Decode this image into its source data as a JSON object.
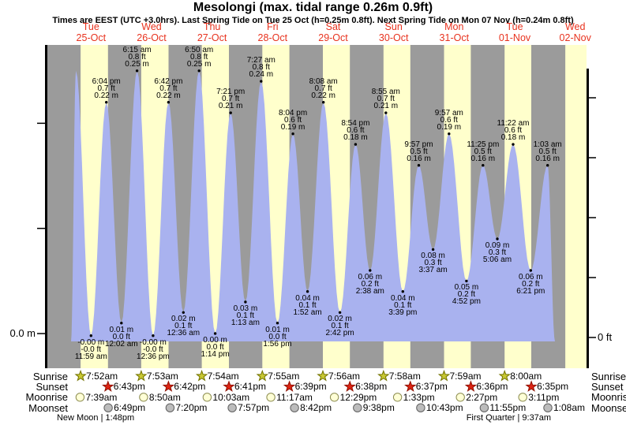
{
  "header": {
    "title": "Mesolongi (max. tidal range 0.26m 0.9ft)",
    "subtitle": "Times are EEST (UTC +3.0hrs). Last Spring Tide on Tue 25 Oct (h=0.25m 0.8ft). Next Spring Tide on Mon 07 Nov (h=0.24m 0.8ft)"
  },
  "chart_data": {
    "type": "area",
    "title": "Mesolongi (max. tidal range 0.26m 0.9ft)",
    "y_axis": {
      "left_label": "0.0 m",
      "right_label": "0 ft",
      "left_tick_values_m": [
        0,
        0.1,
        0.2
      ],
      "right_tick_values_ft": [
        0,
        0.2,
        0.4,
        0.6,
        0.8
      ],
      "range_m": [
        -0.008,
        0.274
      ]
    },
    "days": [
      {
        "name": "Tue",
        "date": "25-Oct"
      },
      {
        "name": "Wed",
        "date": "26-Oct"
      },
      {
        "name": "Thu",
        "date": "27-Oct"
      },
      {
        "name": "Fri",
        "date": "28-Oct"
      },
      {
        "name": "Sat",
        "date": "29-Oct"
      },
      {
        "name": "Sun",
        "date": "30-Oct"
      },
      {
        "name": "Mon",
        "date": "31-Oct"
      },
      {
        "name": "Tue",
        "date": "01-Nov"
      },
      {
        "name": "Wed",
        "date": "02-Nov"
      }
    ],
    "tide_events": [
      {
        "kind": "high",
        "day": 0,
        "hour": 6.0,
        "time": "",
        "ft": "",
        "m": "",
        "value": 0.25,
        "labeled": false
      },
      {
        "kind": "low",
        "day": 0,
        "hour": 11.983,
        "time": "11:59 am",
        "ft": "-0.0 ft",
        "m": "-0.00 m",
        "value": -0.002,
        "labeled": true
      },
      {
        "kind": "high",
        "day": 0,
        "hour": 18.067,
        "time": "6:04 pm",
        "ft": "0.7 ft",
        "m": "0.22 m",
        "value": 0.22,
        "labeled": true
      },
      {
        "kind": "low",
        "day": 1,
        "hour": 0.033,
        "time": "12:02 am",
        "ft": "0.0 ft",
        "m": "0.01 m",
        "value": 0.01,
        "labeled": true
      },
      {
        "kind": "high",
        "day": 1,
        "hour": 6.25,
        "time": "6:15 am",
        "ft": "0.8 ft",
        "m": "0.25 m",
        "value": 0.25,
        "labeled": true
      },
      {
        "kind": "low",
        "day": 1,
        "hour": 12.6,
        "time": "12:36 pm",
        "ft": "-0.0 ft",
        "m": "-0.00 m",
        "value": -0.002,
        "labeled": true
      },
      {
        "kind": "high",
        "day": 1,
        "hour": 18.7,
        "time": "6:42 pm",
        "ft": "0.7 ft",
        "m": "0.22 m",
        "value": 0.22,
        "labeled": true
      },
      {
        "kind": "low",
        "day": 2,
        "hour": 0.6,
        "time": "12:36 am",
        "ft": "0.1 ft",
        "m": "0.02 m",
        "value": 0.02,
        "labeled": true
      },
      {
        "kind": "high",
        "day": 2,
        "hour": 6.833,
        "time": "6:50 am",
        "ft": "0.8 ft",
        "m": "0.25 m",
        "value": 0.25,
        "labeled": true
      },
      {
        "kind": "low",
        "day": 2,
        "hour": 13.233,
        "time": "1:14 pm",
        "ft": "0.0 ft",
        "m": "0.00 m",
        "value": 0.0,
        "labeled": true
      },
      {
        "kind": "high",
        "day": 2,
        "hour": 19.35,
        "time": "7:21 pm",
        "ft": "0.7 ft",
        "m": "0.21 m",
        "value": 0.21,
        "labeled": true
      },
      {
        "kind": "low",
        "day": 3,
        "hour": 1.217,
        "time": "1:13 am",
        "ft": "0.1 ft",
        "m": "0.03 m",
        "value": 0.03,
        "labeled": true
      },
      {
        "kind": "high",
        "day": 3,
        "hour": 7.45,
        "time": "7:27 am",
        "ft": "0.8 ft",
        "m": "0.24 m",
        "value": 0.24,
        "labeled": true
      },
      {
        "kind": "low",
        "day": 3,
        "hour": 13.933,
        "time": "1:56 pm",
        "ft": "0.0 ft",
        "m": "0.01 m",
        "value": 0.01,
        "labeled": true
      },
      {
        "kind": "high",
        "day": 3,
        "hour": 20.067,
        "time": "8:04 pm",
        "ft": "0.6 ft",
        "m": "0.19 m",
        "value": 0.19,
        "labeled": true
      },
      {
        "kind": "low",
        "day": 4,
        "hour": 1.867,
        "time": "1:52 am",
        "ft": "0.1 ft",
        "m": "0.04 m",
        "value": 0.04,
        "labeled": true
      },
      {
        "kind": "high",
        "day": 4,
        "hour": 8.133,
        "time": "8:08 am",
        "ft": "0.7 ft",
        "m": "0.22 m",
        "value": 0.22,
        "labeled": true
      },
      {
        "kind": "low",
        "day": 4,
        "hour": 14.7,
        "time": "2:42 pm",
        "ft": "0.1 ft",
        "m": "0.02 m",
        "value": 0.02,
        "labeled": true
      },
      {
        "kind": "high",
        "day": 4,
        "hour": 20.9,
        "time": "8:54 pm",
        "ft": "0.6 ft",
        "m": "0.18 m",
        "value": 0.18,
        "labeled": true
      },
      {
        "kind": "low",
        "day": 5,
        "hour": 2.633,
        "time": "2:38 am",
        "ft": "0.2 ft",
        "m": "0.06 m",
        "value": 0.06,
        "labeled": true
      },
      {
        "kind": "high",
        "day": 5,
        "hour": 8.917,
        "time": "8:55 am",
        "ft": "0.7 ft",
        "m": "0.21 m",
        "value": 0.21,
        "labeled": true
      },
      {
        "kind": "low",
        "day": 5,
        "hour": 15.65,
        "time": "3:39 pm",
        "ft": "0.1 ft",
        "m": "0.04 m",
        "value": 0.04,
        "labeled": true
      },
      {
        "kind": "high",
        "day": 5,
        "hour": 21.95,
        "time": "9:57 pm",
        "ft": "0.5 ft",
        "m": "0.16 m",
        "value": 0.16,
        "labeled": true
      },
      {
        "kind": "low",
        "day": 6,
        "hour": 3.617,
        "time": "3:37 am",
        "ft": "0.3 ft",
        "m": "0.08 m",
        "value": 0.08,
        "labeled": true
      },
      {
        "kind": "high",
        "day": 6,
        "hour": 9.95,
        "time": "9:57 am",
        "ft": "0.6 ft",
        "m": "0.19 m",
        "value": 0.19,
        "labeled": true
      },
      {
        "kind": "low",
        "day": 6,
        "hour": 16.867,
        "time": "4:52 pm",
        "ft": "0.2 ft",
        "m": "0.05 m",
        "value": 0.05,
        "labeled": true
      },
      {
        "kind": "high",
        "day": 6,
        "hour": 23.417,
        "time": "11:25 pm",
        "ft": "0.5 ft",
        "m": "0.16 m",
        "value": 0.16,
        "labeled": true
      },
      {
        "kind": "low",
        "day": 7,
        "hour": 5.1,
        "time": "5:06 am",
        "ft": "0.3 ft",
        "m": "0.09 m",
        "value": 0.09,
        "labeled": true
      },
      {
        "kind": "high",
        "day": 7,
        "hour": 11.367,
        "time": "11:22 am",
        "ft": "0.6 ft",
        "m": "0.18 m",
        "value": 0.18,
        "labeled": true
      },
      {
        "kind": "low",
        "day": 7,
        "hour": 18.35,
        "time": "6:21 pm",
        "ft": "0.2 ft",
        "m": "0.06 m",
        "value": 0.06,
        "labeled": true
      },
      {
        "kind": "high",
        "day": 8,
        "hour": 1.05,
        "time": "1:03 am",
        "ft": "0.5 ft",
        "m": "0.16 m",
        "value": 0.16,
        "labeled": true
      }
    ],
    "colors": {
      "day_band": "#ffffcc",
      "night_band": "#9b9b9b",
      "tide_fill": "#a9b2ef",
      "day_label_red": "#e8321e",
      "axis_black": "#000000"
    }
  },
  "almanac": {
    "rows": [
      {
        "id": "sunrise",
        "label": "Sunrise",
        "icon": "sunrise-star",
        "times": [
          {
            "t": "7:52am",
            "day": 0
          },
          {
            "t": "7:53am",
            "day": 1
          },
          {
            "t": "7:54am",
            "day": 2
          },
          {
            "t": "7:55am",
            "day": 3
          },
          {
            "t": "7:56am",
            "day": 4
          },
          {
            "t": "7:58am",
            "day": 5
          },
          {
            "t": "7:59am",
            "day": 6
          },
          {
            "t": "8:00am",
            "day": 7
          }
        ]
      },
      {
        "id": "sunset",
        "label": "Sunset",
        "icon": "sunset-star",
        "times": [
          {
            "t": "6:43pm",
            "day": 0
          },
          {
            "t": "6:42pm",
            "day": 1
          },
          {
            "t": "6:41pm",
            "day": 2
          },
          {
            "t": "6:39pm",
            "day": 3
          },
          {
            "t": "6:38pm",
            "day": 4
          },
          {
            "t": "6:37pm",
            "day": 5
          },
          {
            "t": "6:36pm",
            "day": 6
          },
          {
            "t": "6:35pm",
            "day": 7
          }
        ]
      },
      {
        "id": "moonrise",
        "label": "Moonrise",
        "icon": "moonrise-circle",
        "times": [
          {
            "t": "7:39am",
            "day": 0
          },
          {
            "t": "8:50am",
            "day": 1
          },
          {
            "t": "10:03am",
            "day": 2
          },
          {
            "t": "11:17am",
            "day": 3
          },
          {
            "t": "12:29pm",
            "day": 4
          },
          {
            "t": "1:33pm",
            "day": 5
          },
          {
            "t": "2:27pm",
            "day": 6
          },
          {
            "t": "3:11pm",
            "day": 7
          }
        ]
      },
      {
        "id": "moonset",
        "label": "Moonset",
        "icon": "moonset-circle",
        "times": [
          {
            "t": "6:49pm",
            "day": 0
          },
          {
            "t": "7:20pm",
            "day": 1
          },
          {
            "t": "7:57pm",
            "day": 2
          },
          {
            "t": "8:42pm",
            "day": 3
          },
          {
            "t": "9:38pm",
            "day": 4
          },
          {
            "t": "10:43pm",
            "day": 5
          },
          {
            "t": "11:55pm",
            "day": 6
          },
          {
            "t": "1:08am",
            "day": 8
          }
        ]
      }
    ],
    "moon_phases": [
      {
        "text": "New Moon | 1:48pm",
        "day": 0,
        "hour": 13.8
      },
      {
        "text": "First Quarter | 9:37am",
        "day": 7,
        "hour": 9.617
      }
    ]
  }
}
